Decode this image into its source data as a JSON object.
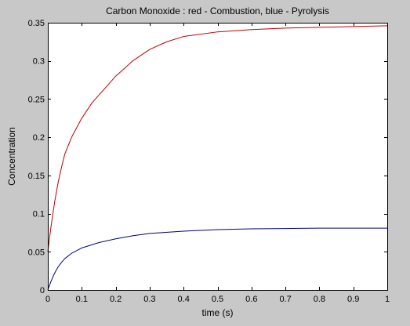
{
  "figure": {
    "background": "#c8c8c8",
    "axes_background": "#ffffff"
  },
  "chart_data": {
    "type": "line",
    "title": "Carbon Monoxide : red - Combustion, blue - Pyrolysis",
    "xlabel": "time (s)",
    "ylabel": "Concentration",
    "xlim": [
      0,
      1
    ],
    "ylim": [
      0,
      0.35
    ],
    "xticks": [
      0,
      0.1,
      0.2,
      0.3,
      0.4,
      0.5,
      0.6,
      0.7,
      0.8,
      0.9,
      1
    ],
    "xtick_labels": [
      "0",
      "0.1",
      "0.2",
      "0.3",
      "0.4",
      "0.5",
      "0.6",
      "0.7",
      "0.8",
      "0.9",
      "1"
    ],
    "yticks": [
      0,
      0.05,
      0.1,
      0.15,
      0.2,
      0.25,
      0.3,
      0.35
    ],
    "ytick_labels": [
      "0",
      "0.05",
      "0.1",
      "0.15",
      "0.2",
      "0.25",
      "0.3",
      "0.35"
    ],
    "grid": false,
    "legend": "none",
    "series": [
      {
        "color": "#c00000",
        "x": [
          0,
          0.01,
          0.02,
          0.03,
          0.04,
          0.05,
          0.07,
          0.1,
          0.13,
          0.15,
          0.2,
          0.25,
          0.3,
          0.35,
          0.4,
          0.5,
          0.6,
          0.7,
          0.8,
          0.9,
          1.0
        ],
        "y": [
          0.05,
          0.085,
          0.115,
          0.14,
          0.16,
          0.178,
          0.2,
          0.225,
          0.245,
          0.255,
          0.28,
          0.3,
          0.315,
          0.325,
          0.332,
          0.338,
          0.341,
          0.343,
          0.344,
          0.345,
          0.346
        ]
      },
      {
        "color": "#000080",
        "x": [
          0,
          0.01,
          0.02,
          0.03,
          0.04,
          0.05,
          0.07,
          0.1,
          0.15,
          0.2,
          0.25,
          0.3,
          0.4,
          0.5,
          0.6,
          0.7,
          0.8,
          0.9,
          1.0
        ],
        "y": [
          0,
          0.012,
          0.022,
          0.03,
          0.036,
          0.041,
          0.048,
          0.055,
          0.062,
          0.067,
          0.071,
          0.074,
          0.077,
          0.079,
          0.08,
          0.0805,
          0.081,
          0.081,
          0.081
        ]
      }
    ]
  }
}
